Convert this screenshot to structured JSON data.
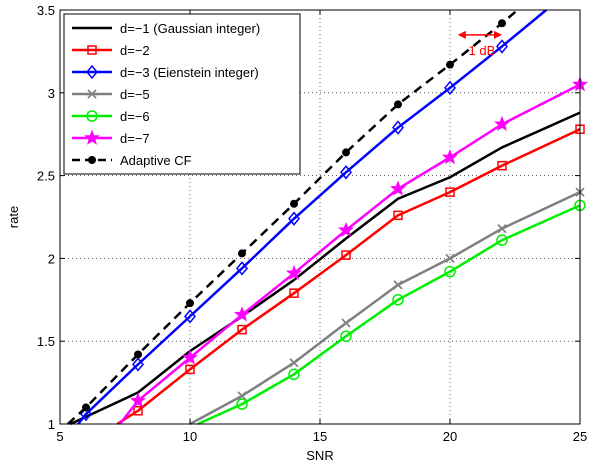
{
  "chart_data": {
    "type": "line",
    "title": "",
    "xlabel": "SNR",
    "ylabel": "rate",
    "xlim": [
      5,
      25
    ],
    "ylim": [
      1,
      3.5
    ],
    "grid": true,
    "legend_position": "top-left",
    "xticks": [
      "5",
      "10",
      "15",
      "20",
      "25"
    ],
    "yticks": [
      "1",
      "1.5",
      "2",
      "2.5",
      "3",
      "3.5"
    ],
    "series": [
      {
        "name": "d=−1 (Gaussian integer)",
        "color": "#000000",
        "marker": "none",
        "dash": "solid",
        "x": [
          5.4,
          8,
          10,
          12,
          14,
          16,
          18,
          20,
          22,
          25
        ],
        "y": [
          1.0,
          1.19,
          1.44,
          1.65,
          1.87,
          2.12,
          2.36,
          2.49,
          2.67,
          2.88
        ]
      },
      {
        "name": "d=−2",
        "color": "#ff0000",
        "marker": "square",
        "dash": "solid",
        "x": [
          7.2,
          8,
          10,
          12,
          14,
          16,
          18,
          20,
          22,
          25
        ],
        "y": [
          1.0,
          1.08,
          1.33,
          1.57,
          1.79,
          2.02,
          2.26,
          2.4,
          2.56,
          2.78
        ]
      },
      {
        "name": "d=−3 (Eienstein integer)",
        "color": "#0000ff",
        "marker": "diamond",
        "dash": "solid",
        "x": [
          5.7,
          6,
          8,
          10,
          12,
          14,
          16,
          18,
          20,
          22,
          23.7
        ],
        "y": [
          1.0,
          1.06,
          1.36,
          1.65,
          1.94,
          2.24,
          2.52,
          2.79,
          3.03,
          3.28,
          3.5
        ]
      },
      {
        "name": "d=−5",
        "color": "#808080",
        "marker": "x",
        "dash": "solid",
        "x": [
          10,
          12,
          14,
          16,
          18,
          20,
          22,
          25
        ],
        "y": [
          1.0,
          1.17,
          1.37,
          1.61,
          1.84,
          2.0,
          2.18,
          2.4
        ]
      },
      {
        "name": "d=−6",
        "color": "#00ee00",
        "marker": "circle",
        "dash": "solid",
        "x": [
          10.3,
          12,
          14,
          16,
          18,
          20,
          22,
          25
        ],
        "y": [
          1.0,
          1.12,
          1.3,
          1.53,
          1.75,
          1.92,
          2.11,
          2.32
        ]
      },
      {
        "name": "d=−7",
        "color": "#ff00ff",
        "marker": "star",
        "dash": "solid",
        "x": [
          7.3,
          8,
          10,
          12,
          14,
          16,
          18,
          20,
          22,
          25
        ],
        "y": [
          1.0,
          1.14,
          1.4,
          1.66,
          1.91,
          2.17,
          2.42,
          2.61,
          2.81,
          3.05
        ]
      },
      {
        "name": "Adaptive CF",
        "color": "#000000",
        "marker": "dot",
        "dash": "dashed",
        "x": [
          5.3,
          6,
          8,
          10,
          12,
          14,
          16,
          18,
          20,
          22,
          22.6
        ],
        "y": [
          1.0,
          1.1,
          1.42,
          1.73,
          2.03,
          2.33,
          2.64,
          2.93,
          3.17,
          3.42,
          3.5
        ]
      }
    ],
    "annotation": {
      "text": "1 dB",
      "color": "#ff0000",
      "x1": 20.3,
      "x2": 22.0,
      "y": 3.35
    }
  }
}
